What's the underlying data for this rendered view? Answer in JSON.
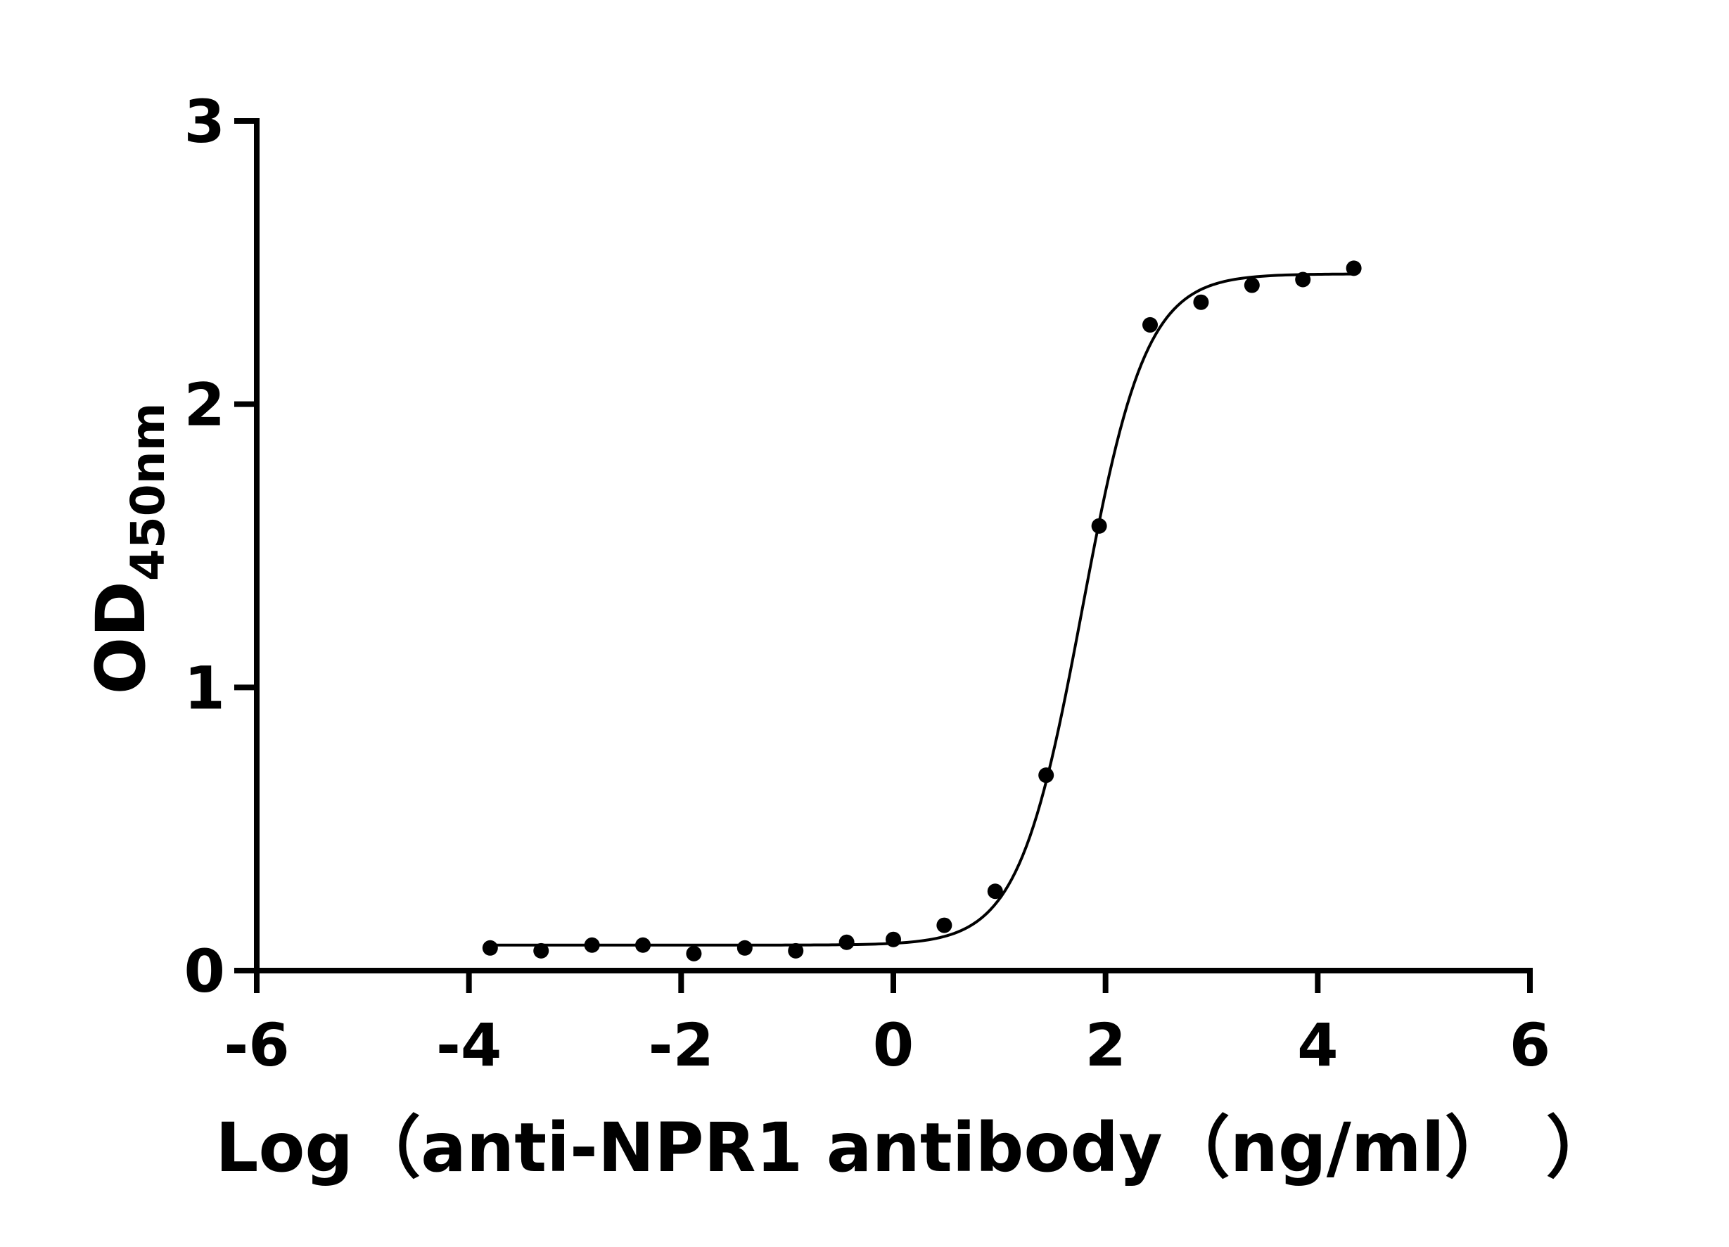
{
  "chart_data": {
    "type": "scatter",
    "title": "",
    "xlabel": "Log（anti-NPR1 antibody（ng/ml）　）",
    "ylabel_main": "OD",
    "ylabel_sub": "450nm",
    "xlim": [
      -6,
      6
    ],
    "ylim": [
      0,
      3
    ],
    "xticks": [
      "-6",
      "-4",
      "-2",
      "0",
      "2",
      "4",
      "6"
    ],
    "yticks": [
      "0",
      "1",
      "2",
      "3"
    ],
    "grid": false,
    "legend": "none",
    "series": [
      {
        "x": [
          -3.8,
          -3.32,
          -2.84,
          -2.36,
          -1.88,
          -1.4,
          -0.92,
          -0.44,
          0.0,
          0.48,
          0.96,
          1.44,
          1.94,
          2.42,
          2.9,
          3.38,
          3.86,
          4.34
        ],
        "y": [
          0.08,
          0.07,
          0.09,
          0.09,
          0.06,
          0.08,
          0.07,
          0.1,
          0.11,
          0.16,
          0.28,
          0.69,
          1.57,
          2.28,
          2.36,
          2.42,
          2.44,
          2.48
        ]
      }
    ],
    "fit_curve": {
      "model": "4PL",
      "bottom": 0.09,
      "top": 2.46,
      "log_ec50": 1.78,
      "hill_slope": 1.45,
      "x_range": [
        -3.8,
        4.34
      ]
    }
  }
}
